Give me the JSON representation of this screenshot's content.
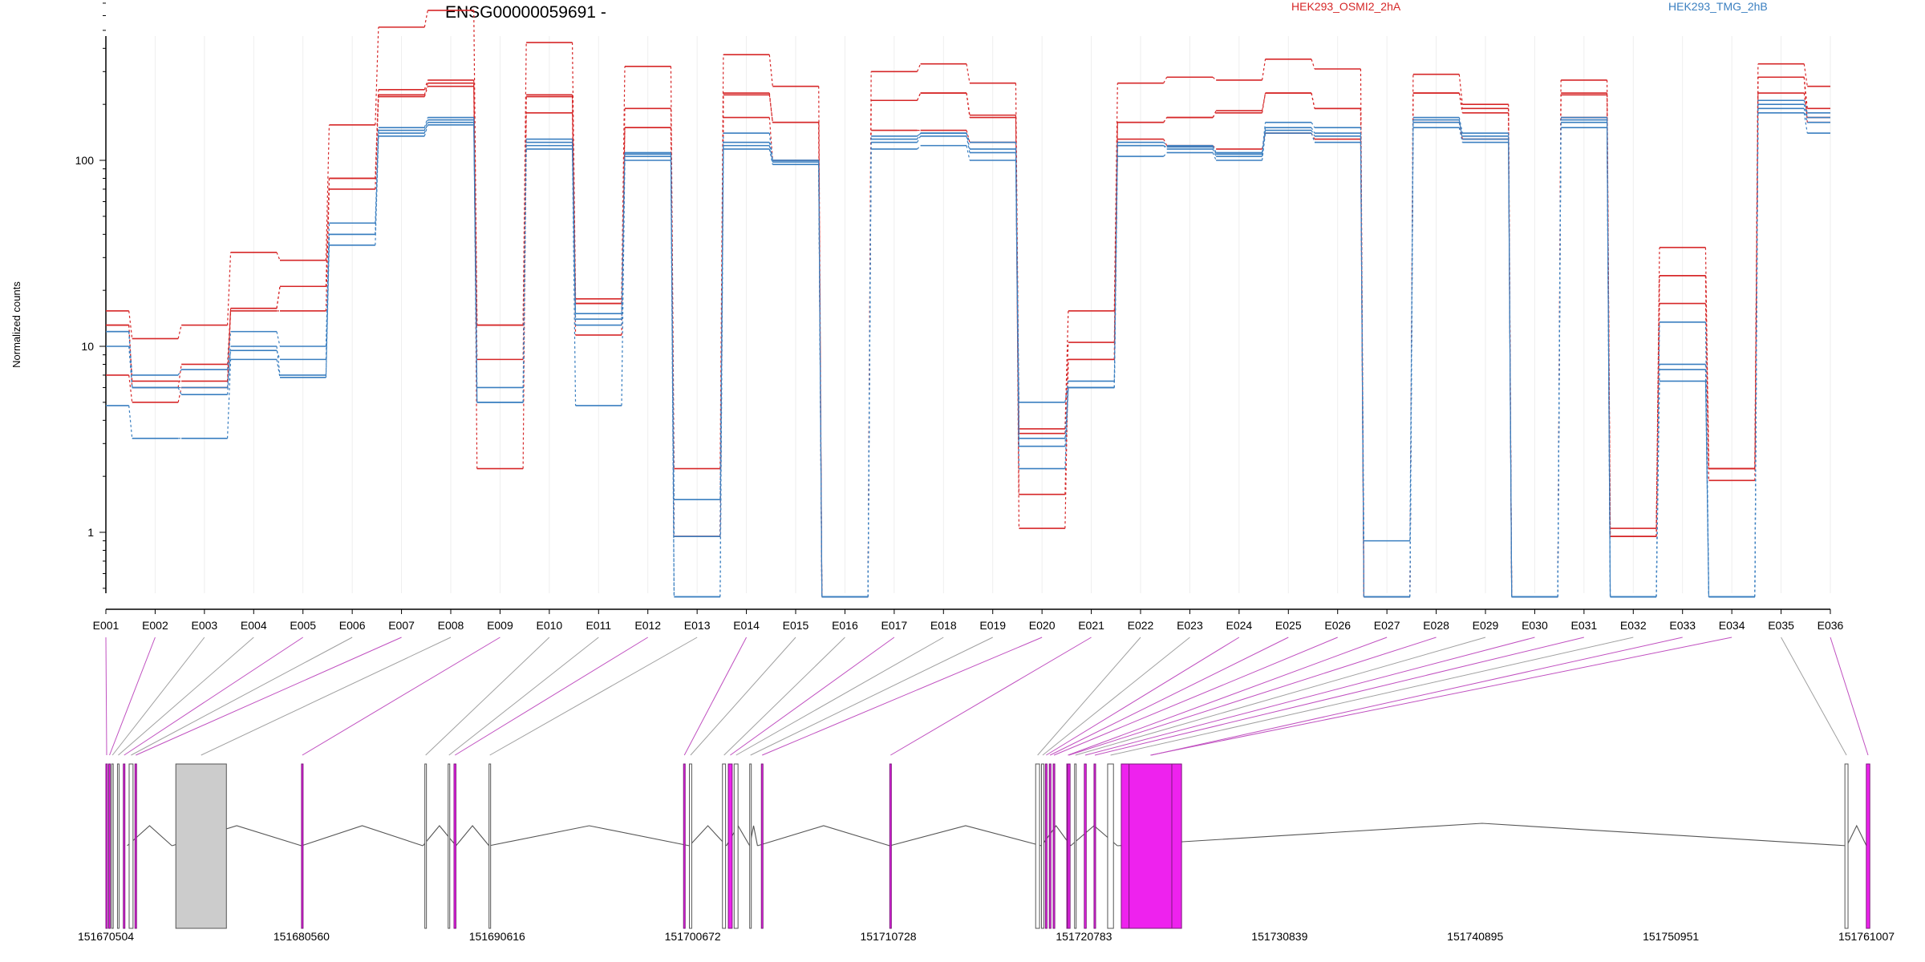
{
  "chart_data": {
    "type": "line",
    "title": "ENSG00000059691 -",
    "ylabel": "Normalized counts",
    "xlabel": "",
    "y_scale": "log",
    "ylim": [
      0.42,
      700
    ],
    "y_ticks": [
      {
        "value": 1,
        "label": "1"
      },
      {
        "value": 10,
        "label": "10"
      },
      {
        "value": 100,
        "label": "100"
      }
    ],
    "grid": "vertical lines at exon positions",
    "legend": {
      "placement": "top",
      "items": [
        {
          "name": "HEK293_OSMI2_2hA",
          "color": "#d62728"
        },
        {
          "name": "HEK293_TMG_2hB",
          "color": "#3a7fc0"
        }
      ]
    },
    "categories": [
      "E001",
      "E002",
      "E003",
      "E004",
      "E005",
      "E006",
      "E007",
      "E008",
      "E009",
      "E010",
      "E011",
      "E012",
      "E013",
      "E014",
      "E015",
      "E016",
      "E017",
      "E018",
      "E019",
      "E020",
      "E021",
      "E022",
      "E023",
      "E024",
      "E025",
      "E026",
      "E027",
      "E028",
      "E029",
      "E030",
      "E031",
      "E032",
      "E033",
      "E034",
      "E035",
      "E036"
    ],
    "series": [
      {
        "group": "HEK293_OSMI2_2hA",
        "color": "#d62728",
        "values": [
          15.5,
          11,
          13,
          32,
          29,
          155,
          520,
          640,
          13,
          430,
          18,
          320,
          2.2,
          370,
          250,
          0.45,
          300,
          330,
          260,
          3.6,
          15.5,
          260,
          280,
          270,
          350,
          310,
          0.45,
          290,
          200,
          0.45,
          270,
          1.05,
          34,
          2.2,
          330,
          250
        ]
      },
      {
        "group": "HEK293_OSMI2_2hA",
        "color": "#d62728",
        "values": [
          13,
          6,
          8,
          16,
          21,
          80,
          240,
          270,
          8.5,
          220,
          17,
          190,
          0.95,
          230,
          160,
          0.45,
          210,
          230,
          170,
          3.4,
          10.5,
          160,
          170,
          180,
          230,
          190,
          0.45,
          230,
          190,
          0.45,
          230,
          0.95,
          24,
          2.2,
          280,
          190
        ]
      },
      {
        "group": "HEK293_OSMI2_2hA",
        "color": "#d62728",
        "values": [
          7,
          5,
          6,
          15.5,
          15.5,
          70,
          220,
          250,
          2.2,
          180,
          11.5,
          150,
          0.95,
          170,
          100,
          0.45,
          145,
          145,
          125,
          1.6,
          8.5,
          130,
          120,
          115,
          140,
          130,
          0.45,
          160,
          130,
          0.45,
          170,
          0.95,
          17,
          1.9,
          230,
          170
        ]
      },
      {
        "group": "HEK293_OSMI2_2hA",
        "color": "#d62728",
        "values": [
          13,
          6.5,
          6.5,
          16,
          21,
          80,
          225,
          260,
          13,
          225,
          17,
          150,
          0.95,
          225,
          160,
          0.45,
          210,
          230,
          175,
          1.05,
          8.5,
          160,
          170,
          185,
          230,
          190,
          0.45,
          230,
          180,
          0.45,
          225,
          0.95,
          24,
          2.2,
          280,
          160
        ]
      },
      {
        "group": "HEK293_TMG_2hB",
        "color": "#3a7fc0",
        "values": [
          12,
          7,
          7.5,
          12,
          10,
          46,
          150,
          170,
          6,
          130,
          15,
          110,
          1.5,
          140,
          100,
          0.45,
          135,
          140,
          125,
          5,
          6.5,
          125,
          120,
          110,
          160,
          150,
          0.9,
          170,
          140,
          0.45,
          170,
          0.45,
          13.5,
          0.45,
          210,
          180
        ]
      },
      {
        "group": "HEK293_TMG_2hB",
        "color": "#3a7fc0",
        "values": [
          10,
          6,
          5.5,
          10,
          7,
          40,
          140,
          160,
          5,
          120,
          13,
          105,
          0.95,
          125,
          100,
          0.45,
          130,
          140,
          115,
          2.9,
          6,
          120,
          115,
          105,
          145,
          135,
          0.45,
          160,
          135,
          0.45,
          160,
          0.45,
          8,
          0.45,
          190,
          160
        ]
      },
      {
        "group": "HEK293_TMG_2hB",
        "color": "#3a7fc0",
        "values": [
          4.8,
          3.2,
          3.2,
          8.5,
          6.8,
          35,
          135,
          155,
          5,
          115,
          4.8,
          100,
          0.45,
          115,
          95,
          0.45,
          115,
          120,
          100,
          2.2,
          6,
          105,
          110,
          100,
          140,
          125,
          0.45,
          150,
          125,
          0.45,
          150,
          0.45,
          6.5,
          0.45,
          180,
          140
        ]
      },
      {
        "group": "HEK293_TMG_2hB",
        "color": "#3a7fc0",
        "values": [
          12,
          6,
          6,
          9.5,
          8.5,
          40,
          145,
          165,
          5,
          125,
          14,
          108,
          0.45,
          120,
          98,
          0.45,
          125,
          135,
          110,
          3.2,
          6,
          120,
          118,
          108,
          150,
          140,
          0.45,
          165,
          130,
          0.45,
          165,
          0.45,
          7.5,
          0.45,
          200,
          170
        ]
      }
    ],
    "gene_model": {
      "tick_labels": [
        "151670504",
        "151680560",
        "151690616",
        "151700672",
        "151710728",
        "151720783",
        "151730839",
        "151740895",
        "151750951",
        "151761007"
      ],
      "highlight_color": "#ee22ee",
      "intron_color": "#555555",
      "exon_highlighted": [
        true,
        true,
        false,
        false,
        true,
        false,
        true,
        false,
        true,
        false,
        false,
        true,
        false,
        true,
        false,
        false,
        true,
        false,
        false,
        true,
        true,
        false,
        false,
        true,
        true,
        true,
        true,
        true,
        false,
        true,
        true,
        false,
        true,
        true,
        false,
        true
      ]
    }
  }
}
